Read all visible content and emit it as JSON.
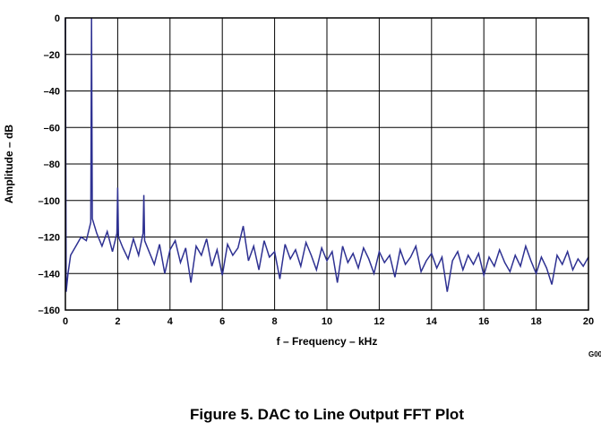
{
  "chart_data": {
    "type": "line",
    "title": "Figure 5. DAC to Line Output FFT Plot",
    "x_label": "f – Frequency – kHz",
    "y_label": "Amplitude – dB",
    "annotation": "G00",
    "color": "#2e3192",
    "grid": true,
    "xlim": [
      0,
      20
    ],
    "ylim": [
      -160,
      0
    ],
    "xticks": [
      0,
      2,
      4,
      6,
      8,
      10,
      12,
      14,
      16,
      18,
      20
    ],
    "yticks": [
      0,
      {
        "value": -20,
        "label": "–20"
      },
      {
        "value": -40,
        "label": "–40"
      },
      {
        "value": -60,
        "label": "–60"
      },
      {
        "value": -80,
        "label": "–80"
      },
      {
        "value": -100,
        "label": "–100"
      },
      {
        "value": -120,
        "label": "–120"
      },
      {
        "value": -140,
        "label": "–140"
      },
      {
        "value": -160,
        "label": "–160"
      }
    ],
    "x": [
      0,
      0.03,
      0.1,
      0.2,
      0.4,
      0.6,
      0.8,
      0.97,
      1.0,
      1.03,
      1.2,
      1.4,
      1.6,
      1.8,
      1.97,
      2.0,
      2.03,
      2.2,
      2.4,
      2.6,
      2.8,
      2.97,
      3.0,
      3.03,
      3.2,
      3.4,
      3.6,
      3.8,
      4.0,
      4.2,
      4.4,
      4.6,
      4.8,
      5.0,
      5.2,
      5.4,
      5.6,
      5.8,
      6.0,
      6.2,
      6.4,
      6.6,
      6.8,
      7.0,
      7.2,
      7.4,
      7.6,
      7.8,
      8.0,
      8.2,
      8.4,
      8.6,
      8.8,
      9.0,
      9.2,
      9.4,
      9.6,
      9.8,
      10.0,
      10.2,
      10.4,
      10.6,
      10.8,
      11.0,
      11.2,
      11.4,
      11.6,
      11.8,
      12.0,
      12.2,
      12.4,
      12.6,
      12.8,
      13.0,
      13.2,
      13.4,
      13.6,
      13.8,
      14.0,
      14.2,
      14.4,
      14.6,
      14.8,
      15.0,
      15.2,
      15.4,
      15.6,
      15.8,
      16.0,
      16.2,
      16.4,
      16.6,
      16.8,
      17.0,
      17.2,
      17.4,
      17.6,
      17.8,
      18.0,
      18.2,
      18.4,
      18.6,
      18.8,
      19.0,
      19.2,
      19.4,
      19.6,
      19.8,
      20.0
    ],
    "values": [
      0,
      -150,
      -140,
      -130,
      -125,
      -120,
      -122,
      -112,
      0,
      -110,
      -118,
      -125,
      -117,
      -128,
      -118,
      -93,
      -120,
      -126,
      -132,
      -121,
      -130,
      -118,
      -97,
      -122,
      -128,
      -135,
      -124,
      -140,
      -127,
      -122,
      -134,
      -126,
      -145,
      -125,
      -130,
      -121,
      -136,
      -127,
      -141,
      -124,
      -130,
      -126,
      -114,
      -133,
      -125,
      -138,
      -122,
      -131,
      -128,
      -143,
      -124,
      -132,
      -127,
      -136,
      -123,
      -130,
      -138,
      -126,
      -133,
      -128,
      -145,
      -125,
      -134,
      -129,
      -137,
      -126,
      -132,
      -140,
      -128,
      -134,
      -130,
      -142,
      -127,
      -135,
      -131,
      -125,
      -139,
      -133,
      -129,
      -137,
      -131,
      -150,
      -133,
      -128,
      -138,
      -130,
      -135,
      -129,
      -141,
      -131,
      -136,
      -127,
      -134,
      -139,
      -130,
      -136,
      -125,
      -133,
      -140,
      -131,
      -137,
      -146,
      -130,
      -135,
      -128,
      -138,
      -132,
      -136,
      -131
    ]
  }
}
